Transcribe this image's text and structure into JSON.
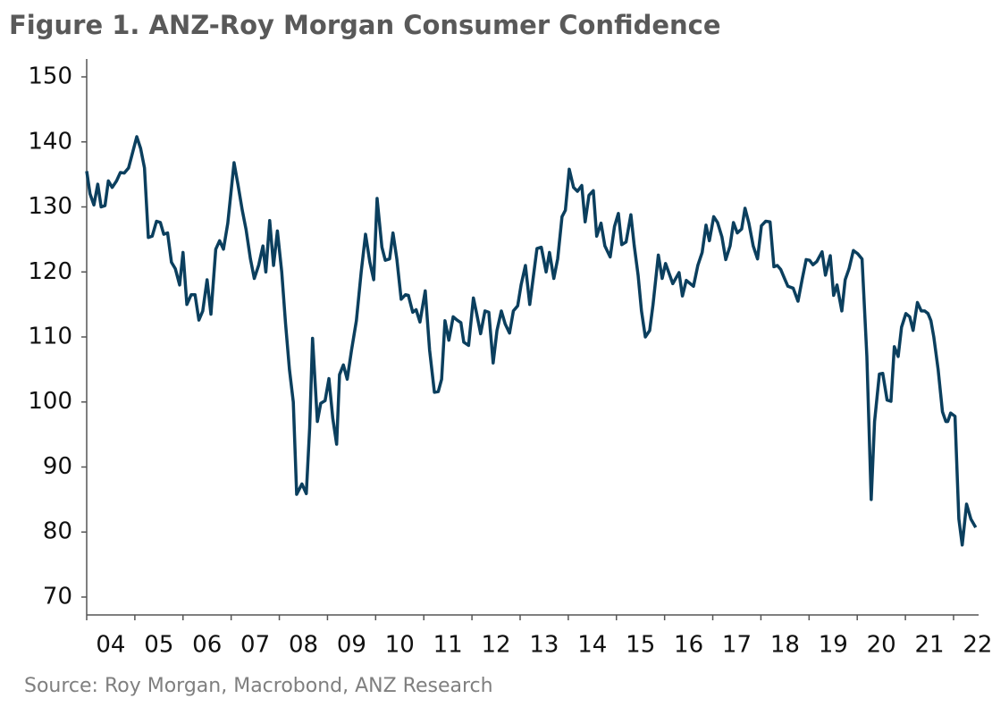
{
  "chart_data": {
    "type": "line",
    "title": "Figure 1.  ANZ-Roy Morgan Consumer Confidence",
    "source": "Source: Roy Morgan, Macrobond, ANZ Research",
    "xlim": [
      2004.0,
      2022.52
    ],
    "ylim": [
      67.25,
      152.75
    ],
    "yticks": [
      70,
      80,
      90,
      100,
      110,
      120,
      130,
      140,
      150
    ],
    "xticks": [
      {
        "value": 2004,
        "label": "04"
      },
      {
        "value": 2005,
        "label": "05"
      },
      {
        "value": 2006,
        "label": "06"
      },
      {
        "value": 2007,
        "label": "07"
      },
      {
        "value": 2008,
        "label": "08"
      },
      {
        "value": 2009,
        "label": "09"
      },
      {
        "value": 2010,
        "label": "10"
      },
      {
        "value": 2011,
        "label": "11"
      },
      {
        "value": 2012,
        "label": "12"
      },
      {
        "value": 2013,
        "label": "13"
      },
      {
        "value": 2014,
        "label": "14"
      },
      {
        "value": 2015,
        "label": "15"
      },
      {
        "value": 2016,
        "label": "16"
      },
      {
        "value": 2017,
        "label": "17"
      },
      {
        "value": 2018,
        "label": "18"
      },
      {
        "value": 2019,
        "label": "19"
      },
      {
        "value": 2020,
        "label": "20"
      },
      {
        "value": 2021,
        "label": "21"
      },
      {
        "value": 2022,
        "label": "22"
      }
    ],
    "grid": false,
    "series": [
      {
        "color": "#0b3f5e",
        "x": [
          2004.0,
          2004.07,
          2004.15,
          2004.23,
          2004.3,
          2004.38,
          2004.45,
          2004.53,
          2004.62,
          2004.7,
          2004.78,
          2004.87,
          2005.04,
          2005.12,
          2005.2,
          2005.28,
          2005.36,
          2005.45,
          2005.53,
          2005.6,
          2005.68,
          2005.76,
          2005.84,
          2005.93,
          2006.0,
          2006.08,
          2006.17,
          2006.25,
          2006.33,
          2006.41,
          2006.5,
          2006.58,
          2006.68,
          2006.76,
          2006.84,
          2006.93,
          2007.06,
          2007.14,
          2007.23,
          2007.31,
          2007.4,
          2007.48,
          2007.57,
          2007.66,
          2007.72,
          2007.8,
          2007.88,
          2007.96,
          2008.05,
          2008.13,
          2008.21,
          2008.29,
          2008.36,
          2008.47,
          2008.56,
          2008.63,
          2008.69,
          2008.79,
          2008.86,
          2008.95,
          2009.03,
          2009.11,
          2009.19,
          2009.25,
          2009.33,
          2009.41,
          2009.5,
          2009.6,
          2009.7,
          2009.79,
          2009.88,
          2009.96,
          2010.03,
          2010.13,
          2010.2,
          2010.29,
          2010.36,
          2010.44,
          2010.53,
          2010.62,
          2010.68,
          2010.77,
          2010.84,
          2010.92,
          2011.03,
          2011.12,
          2011.22,
          2011.3,
          2011.37,
          2011.44,
          2011.52,
          2011.61,
          2011.69,
          2011.77,
          2011.83,
          2011.93,
          2012.03,
          2012.1,
          2012.18,
          2012.27,
          2012.35,
          2012.44,
          2012.52,
          2012.61,
          2012.69,
          2012.78,
          2012.86,
          2012.95,
          2013.02,
          2013.11,
          2013.2,
          2013.35,
          2013.44,
          2013.54,
          2013.61,
          2013.7,
          2013.78,
          2013.87,
          2013.94,
          2014.02,
          2014.11,
          2014.19,
          2014.28,
          2014.35,
          2014.43,
          2014.52,
          2014.59,
          2014.68,
          2014.76,
          2014.87,
          2014.96,
          2015.04,
          2015.11,
          2015.2,
          2015.3,
          2015.37,
          2015.45,
          2015.52,
          2015.6,
          2015.69,
          2015.76,
          2015.87,
          2015.95,
          2016.02,
          2016.17,
          2016.3,
          2016.37,
          2016.45,
          2016.6,
          2016.69,
          2016.78,
          2016.86,
          2016.93,
          2017.02,
          2017.1,
          2017.19,
          2017.27,
          2017.36,
          2017.43,
          2017.51,
          2017.6,
          2017.67,
          2017.75,
          2017.84,
          2017.93,
          2018.01,
          2018.1,
          2018.19,
          2018.27,
          2018.34,
          2018.41,
          2018.49,
          2018.56,
          2018.67,
          2018.77,
          2018.86,
          2018.94,
          2019.01,
          2019.08,
          2019.16,
          2019.27,
          2019.34,
          2019.44,
          2019.51,
          2019.58,
          2019.68,
          2019.75,
          2019.83,
          2019.92,
          2020.01,
          2020.1,
          2020.2,
          2020.29,
          2020.36,
          2020.46,
          2020.53,
          2020.62,
          2020.7,
          2020.77,
          2020.85,
          2020.92,
          2021.01,
          2021.09,
          2021.16,
          2021.25,
          2021.33,
          2021.4,
          2021.47,
          2021.53,
          2021.59,
          2021.68,
          2021.77,
          2021.84,
          2021.88,
          2021.94,
          2022.03,
          2022.11,
          2022.18,
          2022.27,
          2022.36,
          2022.46
        ],
        "values": [
          135.5,
          132,
          130.3,
          133.5,
          130,
          130.2,
          134,
          133,
          134,
          135.3,
          135.2,
          136,
          140.8,
          139,
          136,
          125.3,
          125.5,
          127.8,
          127.6,
          125.8,
          126,
          121.5,
          120.5,
          118,
          123,
          115,
          116.5,
          116.5,
          112.6,
          114,
          118.8,
          113.5,
          123.5,
          124.8,
          123.5,
          127.5,
          136.8,
          133.5,
          129.5,
          126.5,
          122,
          119,
          121,
          124,
          120,
          127.9,
          121,
          126.3,
          120,
          112,
          105,
          100,
          85.8,
          87.4,
          85.9,
          96,
          109.8,
          97,
          99.8,
          100.2,
          103.6,
          97.5,
          93.5,
          104.2,
          105.7,
          103.5,
          108,
          112.5,
          120,
          125.8,
          121.5,
          118.8,
          131.3,
          123.8,
          121.8,
          122,
          126,
          122,
          115.8,
          116.5,
          116.4,
          113.8,
          114.2,
          112.3,
          117.1,
          108,
          101.5,
          101.6,
          103.5,
          112.5,
          109.5,
          113.1,
          112.6,
          112.2,
          109.2,
          108.7,
          116,
          113.5,
          110.5,
          114,
          113.8,
          106,
          111,
          114,
          112,
          110.6,
          114,
          114.8,
          118,
          121,
          115,
          123.6,
          123.8,
          120,
          123,
          119,
          122,
          128.5,
          129.5,
          135.8,
          133,
          132.4,
          133.3,
          127.7,
          131.8,
          132.5,
          125.5,
          127.5,
          124,
          122.3,
          127,
          129,
          124.2,
          124.6,
          128.8,
          124,
          119.5,
          114,
          110,
          111,
          115,
          122.6,
          119,
          121.3,
          118.2,
          119.9,
          116.3,
          118.7,
          117.8,
          121,
          123,
          127.2,
          124.8,
          128.5,
          127.6,
          125.4,
          121.9,
          124,
          127.6,
          126,
          126.6,
          129.8,
          127.5,
          124,
          122,
          127.1,
          127.8,
          127.7,
          120.8,
          121,
          120.4,
          119,
          117.8,
          117.5,
          115.5,
          119,
          121.9,
          121.8,
          121.1,
          121.6,
          123.1,
          119.5,
          122.5,
          116.4,
          118,
          114,
          118.8,
          120.5,
          123.3,
          122.8,
          122,
          107,
          85,
          97,
          104.3,
          104.4,
          100.3,
          100.1,
          108.5,
          107,
          111.5,
          113.6,
          113.1,
          111,
          115.3,
          114,
          114,
          113.6,
          112.5,
          110,
          105,
          98.5,
          97,
          97,
          98.3,
          97.8,
          82,
          78,
          84.3,
          82,
          80.7
        ]
      }
    ]
  }
}
